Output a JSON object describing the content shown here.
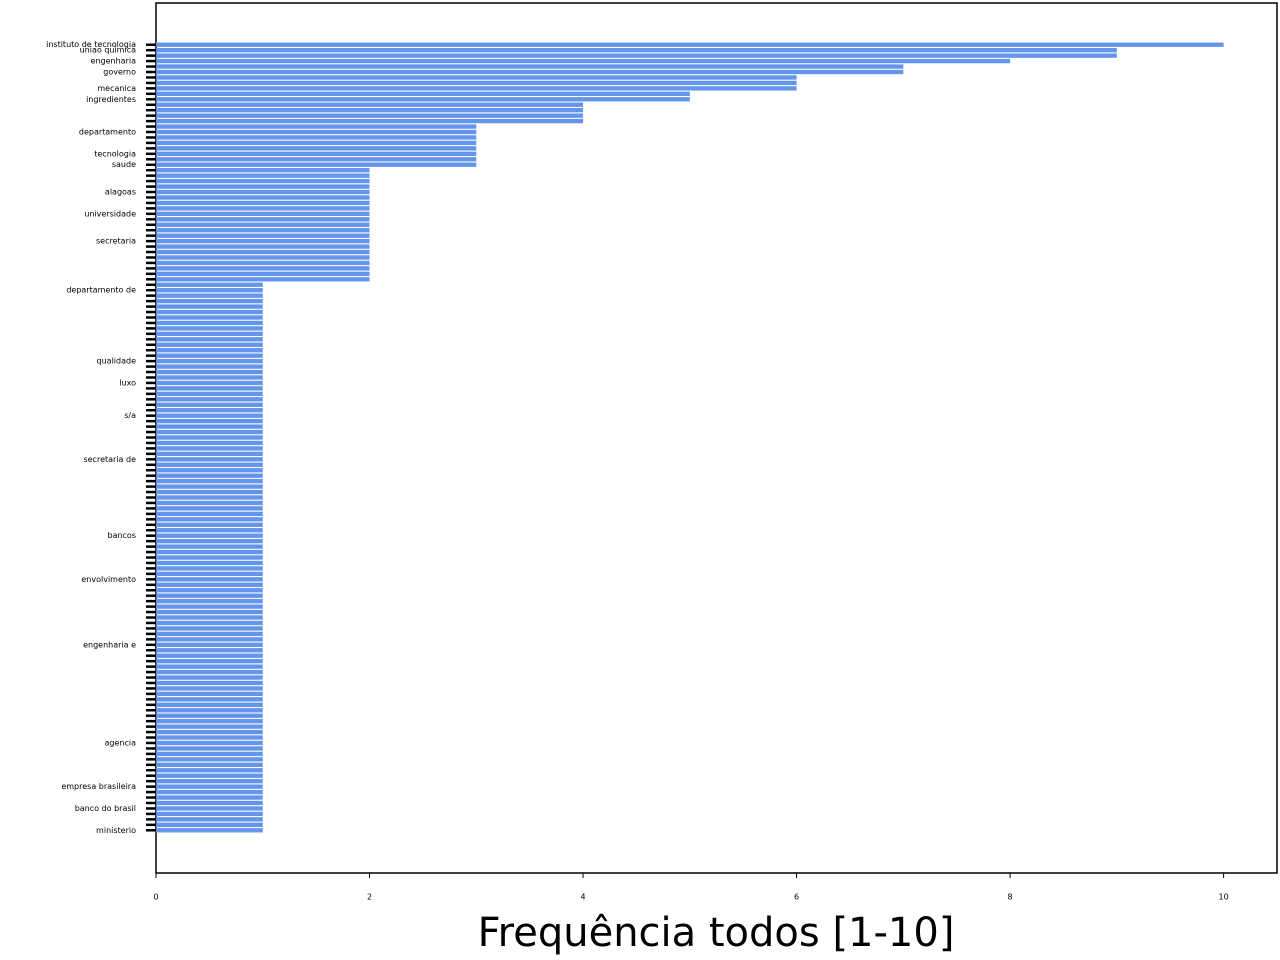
{
  "chart_data": {
    "type": "barh",
    "xlabel": "Frequência todos [1-10]",
    "color": "#6495ed",
    "xlim": [
      0,
      10.5
    ],
    "xticks": [
      0,
      2,
      4,
      6,
      8,
      10
    ],
    "categories": [
      "instituto de tecnologia",
      "uniao quimica",
      null,
      "engenharia",
      null,
      "governo",
      null,
      null,
      "mecanica",
      null,
      "ingredientes",
      null,
      null,
      null,
      null,
      null,
      "departamento",
      null,
      null,
      null,
      "tecnologia",
      null,
      "saude",
      null,
      null,
      null,
      null,
      "alagoas",
      null,
      null,
      null,
      "universidade",
      null,
      null,
      null,
      null,
      "secretaria",
      null,
      null,
      null,
      null,
      null,
      null,
      null,
      null,
      "departamento de",
      null,
      null,
      null,
      null,
      null,
      null,
      null,
      null,
      null,
      null,
      null,
      null,
      "qualidade",
      null,
      null,
      null,
      "luxo",
      null,
      null,
      null,
      null,
      null,
      "s/a",
      null,
      null,
      null,
      null,
      null,
      null,
      null,
      "secretaria de",
      null,
      null,
      null,
      null,
      null,
      null,
      null,
      null,
      null,
      null,
      null,
      null,
      null,
      "bancos",
      null,
      null,
      null,
      null,
      null,
      null,
      null,
      "envolvimento",
      null,
      null,
      null,
      null,
      null,
      null,
      null,
      null,
      null,
      null,
      null,
      "engenharia e",
      null,
      null,
      null,
      null,
      null,
      null,
      null,
      null,
      null,
      null,
      null,
      null,
      null,
      null,
      null,
      null,
      null,
      "agencia",
      null,
      null,
      null,
      null,
      null,
      null,
      null,
      "empresa brasileira",
      null,
      null,
      null,
      "banco do brasil",
      null,
      null,
      null,
      "ministerio"
    ],
    "values": [
      10,
      9,
      9,
      8,
      7,
      7,
      6,
      6,
      6,
      5,
      5,
      4,
      4,
      4,
      4,
      3,
      3,
      3,
      3,
      3,
      3,
      3,
      3,
      2,
      2,
      2,
      2,
      2,
      2,
      2,
      2,
      2,
      2,
      2,
      2,
      2,
      2,
      2,
      2,
      2,
      2,
      2,
      2,
      2,
      1,
      1,
      1,
      1,
      1,
      1,
      1,
      1,
      1,
      1,
      1,
      1,
      1,
      1,
      1,
      1,
      1,
      1,
      1,
      1,
      1,
      1,
      1,
      1,
      1,
      1,
      1,
      1,
      1,
      1,
      1,
      1,
      1,
      1,
      1,
      1,
      1,
      1,
      1,
      1,
      1,
      1,
      1,
      1,
      1,
      1,
      1,
      1,
      1,
      1,
      1,
      1,
      1,
      1,
      1,
      1,
      1,
      1,
      1,
      1,
      1,
      1,
      1,
      1,
      1,
      1,
      1,
      1,
      1,
      1,
      1,
      1,
      1,
      1,
      1,
      1,
      1,
      1,
      1,
      1,
      1,
      1,
      1,
      1,
      1,
      1,
      1,
      1,
      1,
      1,
      1,
      1,
      1,
      1,
      1,
      1,
      1,
      1,
      1,
      1,
      1
    ]
  }
}
